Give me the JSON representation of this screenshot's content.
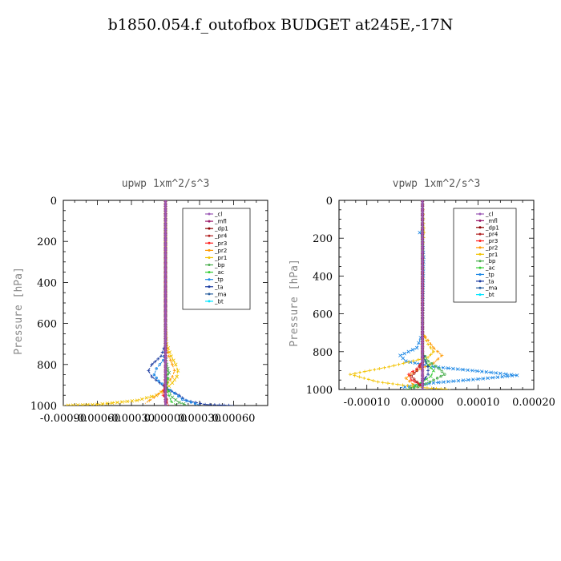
{
  "title": "b1850.054.f_outofbox  BUDGET at245E,-17N",
  "legend_entries": [
    "_cl",
    "_mfl",
    "_dp1",
    "_pr4",
    "_pr3",
    "_pr2",
    "_pr1",
    "_bp",
    "_ac",
    "_tp",
    "_ta",
    "_ma",
    "_bt"
  ],
  "colors": {
    "_cl": "#9b59b6",
    "_mfl": "#9b1b6b",
    "_dp1": "#8b0000",
    "_pr4": "#b22222",
    "_pr3": "#ff2020",
    "_pr2": "#ff9900",
    "_pr1": "#f2c200",
    "_bp": "#4caf50",
    "_ac": "#33cc33",
    "_tp": "#1e88e5",
    "_ta": "#1a3aa0",
    "_ma": "#2a5f9e",
    "_bt": "#00e5ff"
  },
  "chart_data": [
    {
      "type": "line",
      "title": "upwp   1xm^2/s^3",
      "ylabel": "Pressure [hPa]",
      "xlabel": "",
      "xlim": [
        -0.0009,
        0.0009
      ],
      "ylim": [
        1000,
        0
      ],
      "xticks": [
        -0.0009,
        -0.0006,
        -0.0003,
        0.0,
        0.0003,
        0.0006
      ],
      "xtick_labels": [
        "-0.00090",
        "-0.00060",
        "-0.00030",
        "0.00000",
        "0.00030",
        "0.00060"
      ],
      "yticks": [
        0,
        200,
        400,
        600,
        800,
        1000
      ],
      "ytick_labels": [
        "0",
        "200",
        "400",
        "600",
        "800",
        "1000"
      ],
      "series": [
        {
          "name": "_pr1",
          "x": [
            0,
            0,
            1e-05,
            5e-05,
            9e-05,
            0.00011,
            0.0001,
            6e-05,
            0,
            -8e-05,
            -0.00025,
            -0.0006,
            -0.0009
          ],
          "y": [
            0,
            600,
            700,
            760,
            800,
            830,
            860,
            890,
            920,
            950,
            975,
            995,
            1000
          ]
        },
        {
          "name": "_pr2",
          "x": [
            0,
            0,
            3e-05,
            6e-05,
            8e-05,
            6e-05,
            2e-05,
            -3e-05,
            -0.0001,
            -0.00018
          ],
          "y": [
            0,
            700,
            760,
            800,
            830,
            860,
            890,
            930,
            960,
            990
          ]
        },
        {
          "name": "_ta",
          "x": [
            0,
            0,
            -4e-05,
            -0.00012,
            -0.00015,
            -0.00012,
            -5e-05,
            2e-05,
            0.00012,
            0.00018,
            0.00035,
            0.0006
          ],
          "y": [
            0,
            700,
            760,
            800,
            830,
            860,
            890,
            920,
            950,
            975,
            995,
            1000
          ]
        },
        {
          "name": "_tp",
          "x": [
            0,
            0,
            -2e-05,
            -8e-05,
            -0.0001,
            -6e-05,
            0,
            8e-05,
            0.00015,
            0.0003
          ],
          "y": [
            0,
            720,
            780,
            820,
            850,
            880,
            910,
            940,
            970,
            998
          ]
        },
        {
          "name": "_bp",
          "x": [
            0,
            0,
            1e-05,
            3e-05,
            2e-05,
            0,
            3e-05,
            6e-05,
            0.00012,
            0.0002
          ],
          "y": [
            0,
            750,
            800,
            840,
            870,
            900,
            930,
            960,
            985,
            1000
          ]
        },
        {
          "name": "_ac",
          "x": [
            0,
            0,
            1e-05,
            2e-05,
            1e-05,
            3e-05,
            5e-05,
            0.0001
          ],
          "y": [
            0,
            780,
            830,
            870,
            910,
            950,
            980,
            1000
          ]
        },
        {
          "name": "_pr3",
          "x": [
            0,
            0,
            -1e-05,
            -2e-05,
            1e-05,
            3e-05
          ],
          "y": [
            0,
            850,
            900,
            950,
            980,
            1000
          ]
        },
        {
          "name": "_pr4",
          "x": [
            0,
            0,
            -1e-05,
            1e-05,
            2e-05
          ],
          "y": [
            0,
            880,
            930,
            970,
            1000
          ]
        },
        {
          "name": "_mfl",
          "x": [
            0,
            0,
            0
          ],
          "y": [
            0,
            500,
            1000
          ]
        },
        {
          "name": "_dp1",
          "x": [
            0,
            0,
            0
          ],
          "y": [
            0,
            500,
            1000
          ]
        },
        {
          "name": "_cl",
          "x": [
            0,
            0,
            0
          ],
          "y": [
            0,
            500,
            1000
          ]
        }
      ]
    },
    {
      "type": "line",
      "title": "vpwp   1xm^2/s^3",
      "ylabel": "Pressure [hPa]",
      "xlabel": "",
      "xlim": [
        -0.00015,
        0.0002
      ],
      "ylim": [
        1000,
        0
      ],
      "xticks": [
        -0.0001,
        0.0,
        0.0001,
        0.0002
      ],
      "xtick_labels": [
        "-0.00010",
        "0.00000",
        "0.00010",
        "0.00020"
      ],
      "yticks": [
        0,
        200,
        400,
        600,
        800,
        1000
      ],
      "ytick_labels": [
        "0",
        "200",
        "400",
        "600",
        "800",
        "1000"
      ],
      "series": [
        {
          "name": "_tp",
          "x": [
            0,
            0,
            -5e-06,
            0,
            2e-06,
            0,
            -1e-05,
            -4e-05,
            -3e-05,
            2e-05,
            9e-05,
            0.00014,
            0.00017,
            0.0001,
            2e-05,
            -4e-05
          ],
          "y": [
            0,
            150,
            170,
            200,
            300,
            700,
            780,
            820,
            850,
            880,
            900,
            915,
            925,
            945,
            965,
            990
          ]
        },
        {
          "name": "_pr1",
          "x": [
            0,
            3e-06,
            0,
            0,
            1e-05,
            2e-05,
            1e-05,
            -6e-05,
            -0.00013,
            -8e-05,
            0,
            5e-05
          ],
          "y": [
            0,
            170,
            250,
            700,
            760,
            800,
            830,
            880,
            920,
            960,
            990,
            1000
          ]
        },
        {
          "name": "_pr2",
          "x": [
            0,
            0,
            2e-05,
            3.5e-05,
            2e-05,
            -1e-05,
            -3e-05,
            -1e-05
          ],
          "y": [
            0,
            700,
            780,
            820,
            860,
            900,
            940,
            990
          ]
        },
        {
          "name": "_bp",
          "x": [
            0,
            0,
            1e-05,
            3e-05,
            4e-05,
            2e-05,
            0,
            -3e-05
          ],
          "y": [
            0,
            800,
            850,
            890,
            920,
            950,
            980,
            1000
          ]
        },
        {
          "name": "_ac",
          "x": [
            0,
            0,
            1e-05,
            2e-05,
            1.5e-05,
            0,
            -2e-05
          ],
          "y": [
            0,
            820,
            870,
            900,
            930,
            960,
            990
          ]
        },
        {
          "name": "_ta",
          "x": [
            0,
            0,
            5e-06,
            1e-05,
            1e-05,
            0
          ],
          "y": [
            0,
            800,
            850,
            880,
            920,
            960
          ]
        },
        {
          "name": "_pr3",
          "x": [
            0,
            0,
            -1e-05,
            -2.5e-05,
            -2e-05,
            0
          ],
          "y": [
            0,
            850,
            890,
            920,
            950,
            980
          ]
        },
        {
          "name": "_pr4",
          "x": [
            0,
            0,
            -1e-05,
            -2e-05,
            -1e-05,
            0
          ],
          "y": [
            0,
            860,
            900,
            930,
            960,
            990
          ]
        },
        {
          "name": "_mfl",
          "x": [
            0,
            0,
            0
          ],
          "y": [
            0,
            500,
            1000
          ]
        },
        {
          "name": "_dp1",
          "x": [
            0,
            0,
            0
          ],
          "y": [
            0,
            500,
            1000
          ]
        },
        {
          "name": "_cl",
          "x": [
            0,
            0,
            0
          ],
          "y": [
            0,
            500,
            1000
          ]
        }
      ]
    }
  ]
}
